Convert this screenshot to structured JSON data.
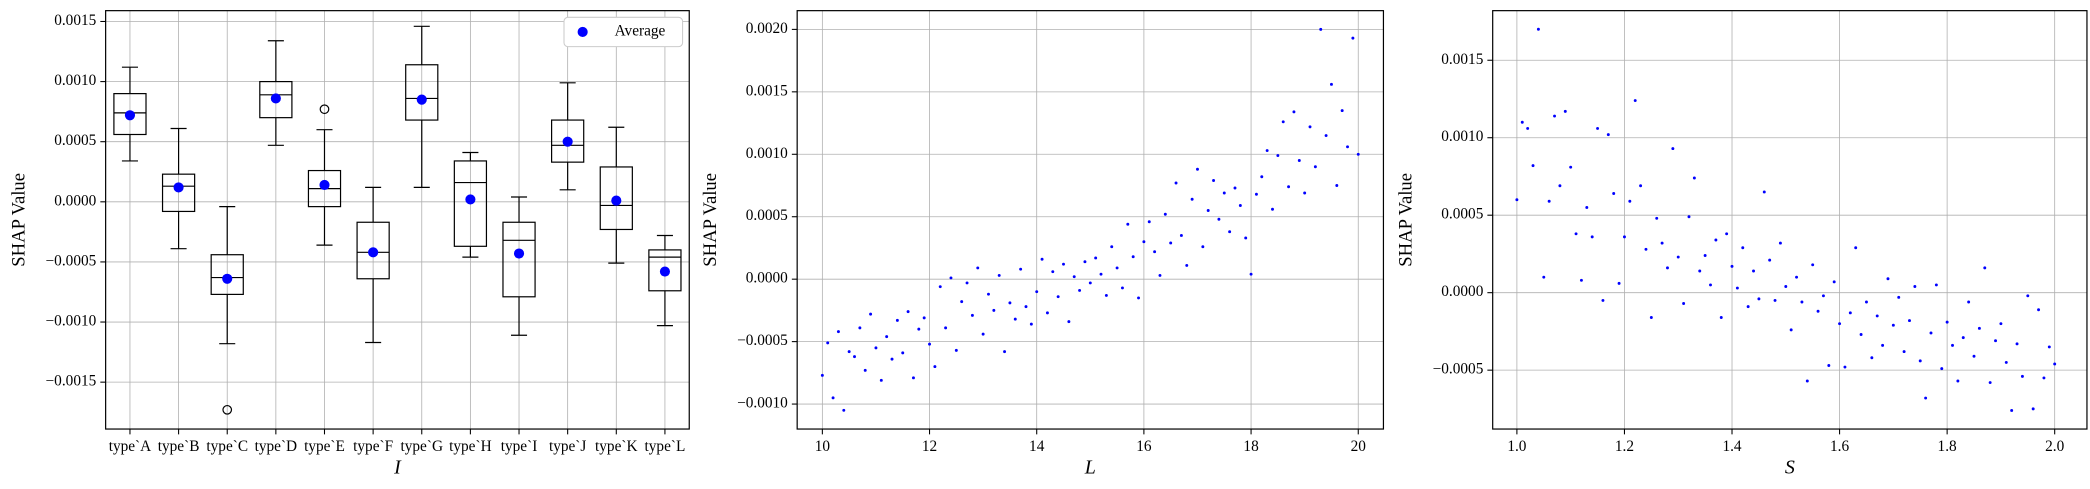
{
  "chart_data": [
    {
      "type": "box",
      "xlabel": "I",
      "ylabel": "SHAP Value",
      "grid": true,
      "legend": "upper right",
      "categories": [
        "type`A",
        "type`B",
        "type`C",
        "type`D",
        "type`E",
        "type`F",
        "type`G",
        "type`H",
        "type`I",
        "type`J",
        "type`K",
        "type`L"
      ],
      "whislo": [
        0.00034,
        -0.00039,
        -0.00118,
        0.00047,
        -0.00036,
        -0.00117,
        0.00012,
        -0.00046,
        -0.00111,
        0.0001,
        -0.00051,
        -0.00103
      ],
      "q1": [
        0.00056,
        -8e-05,
        -0.00077,
        0.0007,
        -4e-05,
        -0.00064,
        0.00068,
        -0.00037,
        -0.00079,
        0.00033,
        -0.00023,
        -0.00074
      ],
      "med": [
        0.00074,
        0.00013,
        -0.00063,
        0.00089,
        0.00011,
        -0.00042,
        0.00086,
        0.00016,
        -0.00032,
        0.00047,
        -3e-05,
        -0.00046
      ],
      "q3": [
        0.0009,
        0.00023,
        -0.00044,
        0.001,
        0.00026,
        -0.00017,
        0.00114,
        0.00034,
        -0.00017,
        0.00068,
        0.00029,
        -0.0004
      ],
      "whishi": [
        0.00112,
        0.00061,
        -4e-05,
        0.00134,
        0.0006,
        0.00012,
        0.00146,
        0.00041,
        4e-05,
        0.00099,
        0.00062,
        -0.00028
      ],
      "fliers": [
        [],
        [],
        [
          -0.00173
        ],
        [],
        [
          0.00077
        ],
        [],
        [],
        [],
        [],
        [],
        [],
        []
      ],
      "mean_series": {
        "name": "Average",
        "color": "#0000ff",
        "values": [
          0.00072,
          0.00012,
          -0.00064,
          0.00086,
          0.00014,
          -0.00042,
          0.00085,
          2e-05,
          -0.00043,
          0.0005,
          1e-05,
          -0.00058
        ]
      },
      "ylim": [
        -0.00189,
        0.00159
      ],
      "yticks": [
        {
          "value": -0.0015,
          "label": "−0.0015"
        },
        {
          "value": -0.001,
          "label": "−0.0010"
        },
        {
          "value": -0.0005,
          "label": "−0.0005"
        },
        {
          "value": 0,
          "label": "0.0000"
        },
        0.0005,
        {
          "value": 0.001,
          "label": "0.0010"
        },
        0.0015
      ]
    },
    {
      "type": "scatter",
      "xlabel": "L",
      "ylabel": "SHAP Value",
      "grid": true,
      "color": "#0000ff",
      "x": [
        10,
        10.1,
        10.2,
        10.3,
        10.4,
        10.5,
        10.6,
        10.7,
        10.8,
        10.9,
        11,
        11.1,
        11.2,
        11.3,
        11.4,
        11.5,
        11.6,
        11.7,
        11.8,
        11.9,
        12,
        12.1,
        12.2,
        12.3,
        12.4,
        12.5,
        12.6,
        12.7,
        12.8,
        12.9,
        13,
        13.1,
        13.2,
        13.3,
        13.4,
        13.5,
        13.6,
        13.7,
        13.8,
        13.9,
        14,
        14.1,
        14.2,
        14.3,
        14.4,
        14.5,
        14.6,
        14.7,
        14.8,
        14.9,
        15,
        15.1,
        15.2,
        15.3,
        15.4,
        15.5,
        15.6,
        15.7,
        15.8,
        15.9,
        16,
        16.1,
        16.2,
        16.3,
        16.4,
        16.5,
        16.6,
        16.7,
        16.8,
        16.9,
        17,
        17.1,
        17.2,
        17.3,
        17.4,
        17.5,
        17.6,
        17.7,
        17.8,
        17.9,
        18,
        18.1,
        18.2,
        18.3,
        18.4,
        18.5,
        18.6,
        18.7,
        18.8,
        18.9,
        19,
        19.1,
        19.2,
        19.3,
        19.4,
        19.5,
        19.6,
        19.7,
        19.8,
        19.9,
        20
      ],
      "values": [
        -0.00077,
        -0.00051,
        -0.00095,
        -0.00042,
        -0.00105,
        -0.00058,
        -0.00062,
        -0.00039,
        -0.00073,
        -0.00028,
        -0.00055,
        -0.00081,
        -0.00046,
        -0.00064,
        -0.00033,
        -0.00059,
        -0.00026,
        -0.00079,
        -0.0004,
        -0.00031,
        -0.00052,
        -0.0007,
        -6e-05,
        -0.00039,
        1e-05,
        -0.00057,
        -0.00018,
        -3e-05,
        -0.00029,
        9e-05,
        -0.00044,
        -0.00012,
        -0.00025,
        3e-05,
        -0.00058,
        -0.00019,
        -0.00032,
        8e-05,
        -0.00022,
        -0.00036,
        -0.0001,
        0.00016,
        -0.00027,
        6e-05,
        -0.00014,
        0.00012,
        -0.00034,
        2e-05,
        -9e-05,
        0.00014,
        -3e-05,
        0.00017,
        4e-05,
        -0.00013,
        0.00026,
        9e-05,
        -7e-05,
        0.00044,
        0.00018,
        -0.00015,
        0.0003,
        0.00046,
        0.00022,
        3e-05,
        0.00052,
        0.00029,
        0.00077,
        0.00035,
        0.00011,
        0.00064,
        0.00088,
        0.00026,
        0.00055,
        0.00079,
        0.00048,
        0.00069,
        0.00038,
        0.00073,
        0.00059,
        0.00033,
        4e-05,
        0.00068,
        0.00082,
        0.00103,
        0.00056,
        0.00099,
        0.00126,
        0.00074,
        0.00134,
        0.00095,
        0.00069,
        0.00122,
        0.0009,
        0.002,
        0.00115,
        0.00156,
        0.00075,
        0.00135,
        0.00106,
        0.00193,
        0.001
      ],
      "xlim": [
        9.53,
        20.47
      ],
      "xticks": [
        10,
        12,
        14,
        16,
        18,
        20
      ],
      "ylim": [
        -0.0012,
        0.00215
      ],
      "yticks": [
        {
          "value": -0.001,
          "label": "−0.0010"
        },
        {
          "value": -0.0005,
          "label": "−0.0005"
        },
        {
          "value": 0,
          "label": "0.0000"
        },
        0.0005,
        {
          "value": 0.001,
          "label": "0.0010"
        },
        0.0015,
        {
          "value": 0.002,
          "label": "0.0020"
        }
      ]
    },
    {
      "type": "scatter",
      "xlabel": "S",
      "ylabel": "SHAP Value",
      "grid": true,
      "color": "#0000ff",
      "x": [
        1,
        1.01,
        1.02,
        1.03,
        1.04,
        1.05,
        1.06,
        1.07,
        1.08,
        1.09,
        1.1,
        1.11,
        1.12,
        1.13,
        1.14,
        1.15,
        1.16,
        1.17,
        1.18,
        1.19,
        1.2,
        1.21,
        1.22,
        1.23,
        1.24,
        1.25,
        1.26,
        1.27,
        1.28,
        1.29,
        1.3,
        1.31,
        1.32,
        1.33,
        1.34,
        1.35,
        1.36,
        1.37,
        1.38,
        1.39,
        1.4,
        1.41,
        1.42,
        1.43,
        1.44,
        1.45,
        1.46,
        1.47,
        1.48,
        1.49,
        1.5,
        1.51,
        1.52,
        1.53,
        1.54,
        1.55,
        1.56,
        1.57,
        1.58,
        1.59,
        1.6,
        1.61,
        1.62,
        1.63,
        1.64,
        1.65,
        1.66,
        1.67,
        1.68,
        1.69,
        1.7,
        1.71,
        1.72,
        1.73,
        1.74,
        1.75,
        1.76,
        1.77,
        1.78,
        1.79,
        1.8,
        1.81,
        1.82,
        1.83,
        1.84,
        1.85,
        1.86,
        1.87,
        1.88,
        1.89,
        1.9,
        1.91,
        1.92,
        1.93,
        1.94,
        1.95,
        1.96,
        1.97,
        1.98,
        1.99,
        2
      ],
      "values": [
        0.0006,
        0.0011,
        0.00106,
        0.00082,
        0.0017,
        0.0001,
        0.00059,
        0.00114,
        0.00069,
        0.00117,
        0.00081,
        0.00038,
        8e-05,
        0.00055,
        0.00036,
        0.00106,
        -5e-05,
        0.00102,
        0.00064,
        6e-05,
        0.00036,
        0.00059,
        0.00124,
        0.00069,
        0.00028,
        -0.00016,
        0.00048,
        0.00032,
        0.00016,
        0.00093,
        0.00023,
        -7e-05,
        0.00049,
        0.00074,
        0.00014,
        0.00024,
        5e-05,
        0.00034,
        -0.00016,
        0.00038,
        0.00017,
        3e-05,
        0.00029,
        -9e-05,
        0.00014,
        -4e-05,
        0.00065,
        0.00021,
        -5e-05,
        0.00032,
        4e-05,
        -0.00024,
        0.0001,
        -6e-05,
        -0.00057,
        0.00018,
        -0.00012,
        -2e-05,
        -0.00047,
        7e-05,
        -0.0002,
        -0.00048,
        -0.00013,
        0.00029,
        -0.00027,
        -6e-05,
        -0.00042,
        -0.00015,
        -0.00034,
        9e-05,
        -0.00021,
        -3e-05,
        -0.00038,
        -0.00018,
        4e-05,
        -0.00044,
        -0.00068,
        -0.00026,
        5e-05,
        -0.00049,
        -0.00019,
        -0.00034,
        -0.00057,
        -0.00029,
        -6e-05,
        -0.00041,
        -0.00023,
        0.00016,
        -0.00058,
        -0.00031,
        -0.0002,
        -0.00045,
        -0.00076,
        -0.00033,
        -0.00054,
        -2e-05,
        -0.00075,
        -0.00011,
        -0.00055,
        -0.00035,
        -0.00046
      ],
      "xlim": [
        0.955,
        2.06
      ],
      "xticks": [
        {
          "value": 1,
          "label": "1.0"
        },
        1.2,
        1.4,
        1.6,
        1.8,
        {
          "value": 2,
          "label": "2.0"
        }
      ],
      "ylim": [
        -0.00088,
        0.00182
      ],
      "yticks": [
        {
          "value": -0.0005,
          "label": "−0.0005"
        },
        {
          "value": 0,
          "label": "0.0000"
        },
        0.0005,
        {
          "value": 0.001,
          "label": "0.0010"
        },
        0.0015
      ]
    }
  ]
}
